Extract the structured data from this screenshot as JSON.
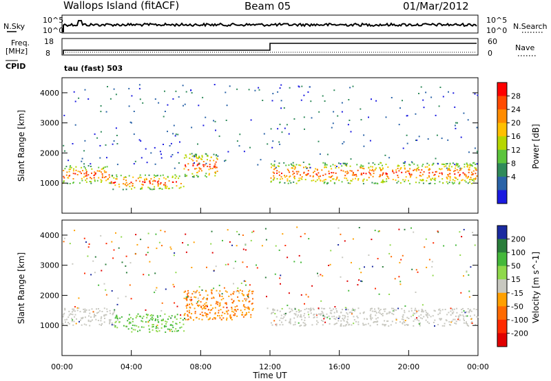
{
  "header": {
    "title_left": "Wallops Island (fitACF)",
    "title_mid": "Beam 05",
    "title_right": "01/Mar/2012"
  },
  "noise_panel": {
    "left_label": "N.Sky",
    "right_label": "N.Search",
    "left_ticks": [
      "10^5",
      "10^0"
    ],
    "right_ticks": [
      "10^5",
      "10^0"
    ]
  },
  "freq_panel": {
    "left_label_1": "Freq.",
    "left_label_2": "[MHz]",
    "left_ticks": [
      "18",
      "8"
    ],
    "right_label": "Nave",
    "right_ticks": [
      "60",
      "0"
    ],
    "cpid_label": "CPID",
    "cpid_text": "tau (fast) 503"
  },
  "chart_data": [
    {
      "type": "heatmap",
      "title": "",
      "ylabel": "Slant Range [km]",
      "xlabel": "",
      "x_range": [
        0,
        24
      ],
      "ylim": [
        0,
        4500
      ],
      "y_ticks": [
        1000,
        2000,
        3000,
        4000
      ],
      "colorbar": {
        "label": "Power [dB]",
        "ticks": [
          "28",
          "24",
          "20",
          "16",
          "12",
          "8",
          "4"
        ],
        "colors": [
          "#ff0000",
          "#ff4a00",
          "#ff8c00",
          "#ffc000",
          "#b6d600",
          "#5cc43c",
          "#2f8a5a",
          "#2a63a8",
          "#1a1ae0"
        ]
      },
      "echo_bands": [
        {
          "t_start": 0.0,
          "t_end": 2.8,
          "range_start": 1000,
          "range_end": 1600,
          "level": "high"
        },
        {
          "t_start": 2.8,
          "t_end": 7.0,
          "range_start": 800,
          "range_end": 1300,
          "level": "high"
        },
        {
          "t_start": 7.0,
          "t_end": 9.0,
          "range_start": 1200,
          "range_end": 2000,
          "level": "medium"
        },
        {
          "t_start": 12.0,
          "t_end": 24.0,
          "range_start": 1000,
          "range_end": 1700,
          "level": "high"
        }
      ]
    },
    {
      "type": "heatmap",
      "title": "",
      "ylabel": "Slant Range [km]",
      "xlabel": "Time UT",
      "x_range": [
        0,
        24
      ],
      "x_ticks": [
        "00:00",
        "04:00",
        "08:00",
        "12:00",
        "16:00",
        "20:00",
        "00:00"
      ],
      "ylim": [
        0,
        4500
      ],
      "y_ticks": [
        1000,
        2000,
        3000,
        4000
      ],
      "colorbar": {
        "label": "Velocity [m s^-1]",
        "ticks": [
          "200",
          "100",
          "50",
          "15",
          "-15",
          "-50",
          "-100",
          "-200"
        ],
        "colors": [
          "#1a2aa0",
          "#2a7d3a",
          "#44b83a",
          "#8fd84a",
          "#c8c8c0",
          "#ffa000",
          "#ff6a00",
          "#ff2a00",
          "#e00000"
        ]
      },
      "echo_bands": [
        {
          "t_start": 0.0,
          "t_end": 3.0,
          "range_start": 1000,
          "range_end": 1600,
          "velocity_class": "-15..15"
        },
        {
          "t_start": 3.0,
          "t_end": 7.0,
          "range_start": 800,
          "range_end": 1400,
          "velocity_class": "15..100"
        },
        {
          "t_start": 7.0,
          "t_end": 11.0,
          "range_start": 1200,
          "range_end": 2200,
          "velocity_class": "-100..-15"
        },
        {
          "t_start": 12.0,
          "t_end": 24.0,
          "range_start": 1000,
          "range_end": 1600,
          "velocity_class": "-15..15"
        }
      ]
    }
  ]
}
